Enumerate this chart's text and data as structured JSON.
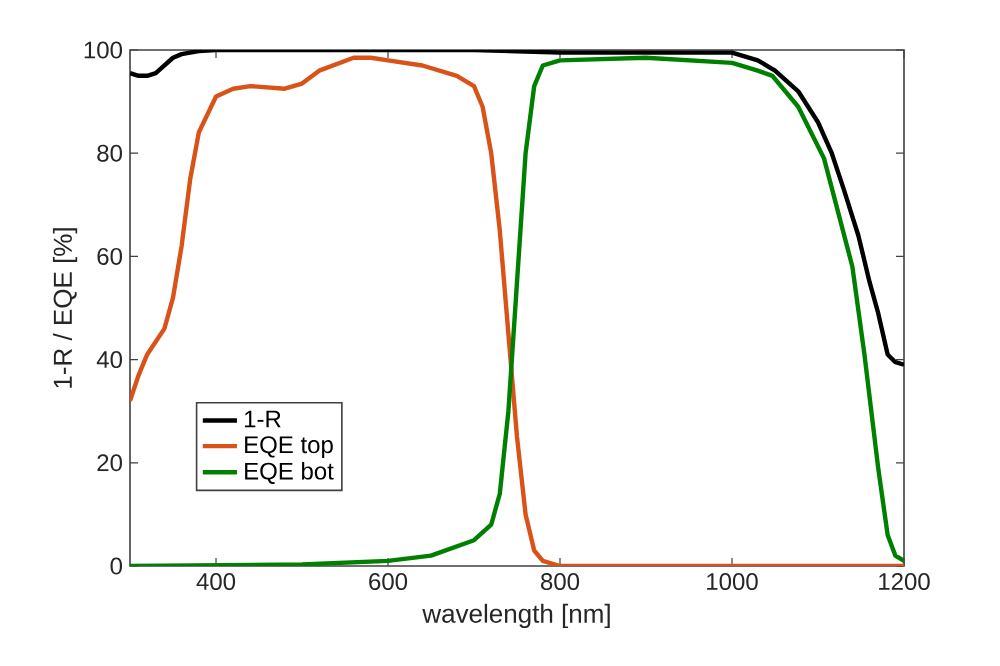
{
  "chart_data": {
    "type": "line",
    "xlabel": "wavelength [nm]",
    "ylabel": "1-R / EQE [%]",
    "xlim": [
      300,
      1200
    ],
    "ylim": [
      0,
      100
    ],
    "xticks": [
      400,
      600,
      800,
      1000,
      1200
    ],
    "yticks": [
      0,
      20,
      40,
      60,
      80,
      100
    ],
    "grid": false,
    "legend": "bottom left",
    "marker": "none",
    "line_style": "solid",
    "series": [
      {
        "name": "1-R",
        "color": "#000000",
        "x": [
          300,
          310,
          320,
          330,
          340,
          350,
          360,
          380,
          400,
          500,
          600,
          700,
          800,
          900,
          1000,
          1030,
          1050,
          1077,
          1100,
          1116,
          1130,
          1147,
          1160,
          1170,
          1181,
          1190,
          1200
        ],
        "values": [
          95.5,
          95,
          95,
          95.5,
          97,
          98.5,
          99.2,
          99.8,
          100,
          100,
          100,
          100,
          99.5,
          99.5,
          99.5,
          98,
          96,
          92,
          86,
          80,
          73,
          64,
          55,
          49,
          41,
          39.5,
          39
        ]
      },
      {
        "name": "EQE top",
        "color": "#d95319",
        "x": [
          300,
          310,
          320,
          340,
          350,
          360,
          370,
          380,
          400,
          420,
          440,
          480,
          500,
          520,
          560,
          580,
          600,
          640,
          680,
          700,
          710,
          720,
          730,
          740,
          750,
          760,
          770,
          780,
          800,
          1200
        ],
        "values": [
          32,
          37,
          41,
          46,
          52,
          62,
          75,
          84,
          91,
          92.5,
          93,
          92.5,
          93.5,
          96,
          98.5,
          98.5,
          98,
          97,
          95,
          93,
          89,
          80,
          65,
          45,
          25,
          10,
          3,
          1,
          0,
          0
        ]
      },
      {
        "name": "EQE bot",
        "color": "#008000",
        "x": [
          300,
          500,
          600,
          650,
          700,
          720,
          730,
          740,
          750,
          760,
          770,
          780,
          800,
          900,
          1000,
          1030,
          1047,
          1077,
          1107,
          1140,
          1154,
          1170,
          1181,
          1190,
          1200
        ],
        "values": [
          0,
          0.3,
          1,
          2,
          5,
          8,
          14,
          30,
          55,
          80,
          93,
          97,
          98,
          98.5,
          97.5,
          96,
          95,
          89,
          79,
          58,
          41,
          19,
          6,
          2,
          1
        ]
      }
    ]
  }
}
